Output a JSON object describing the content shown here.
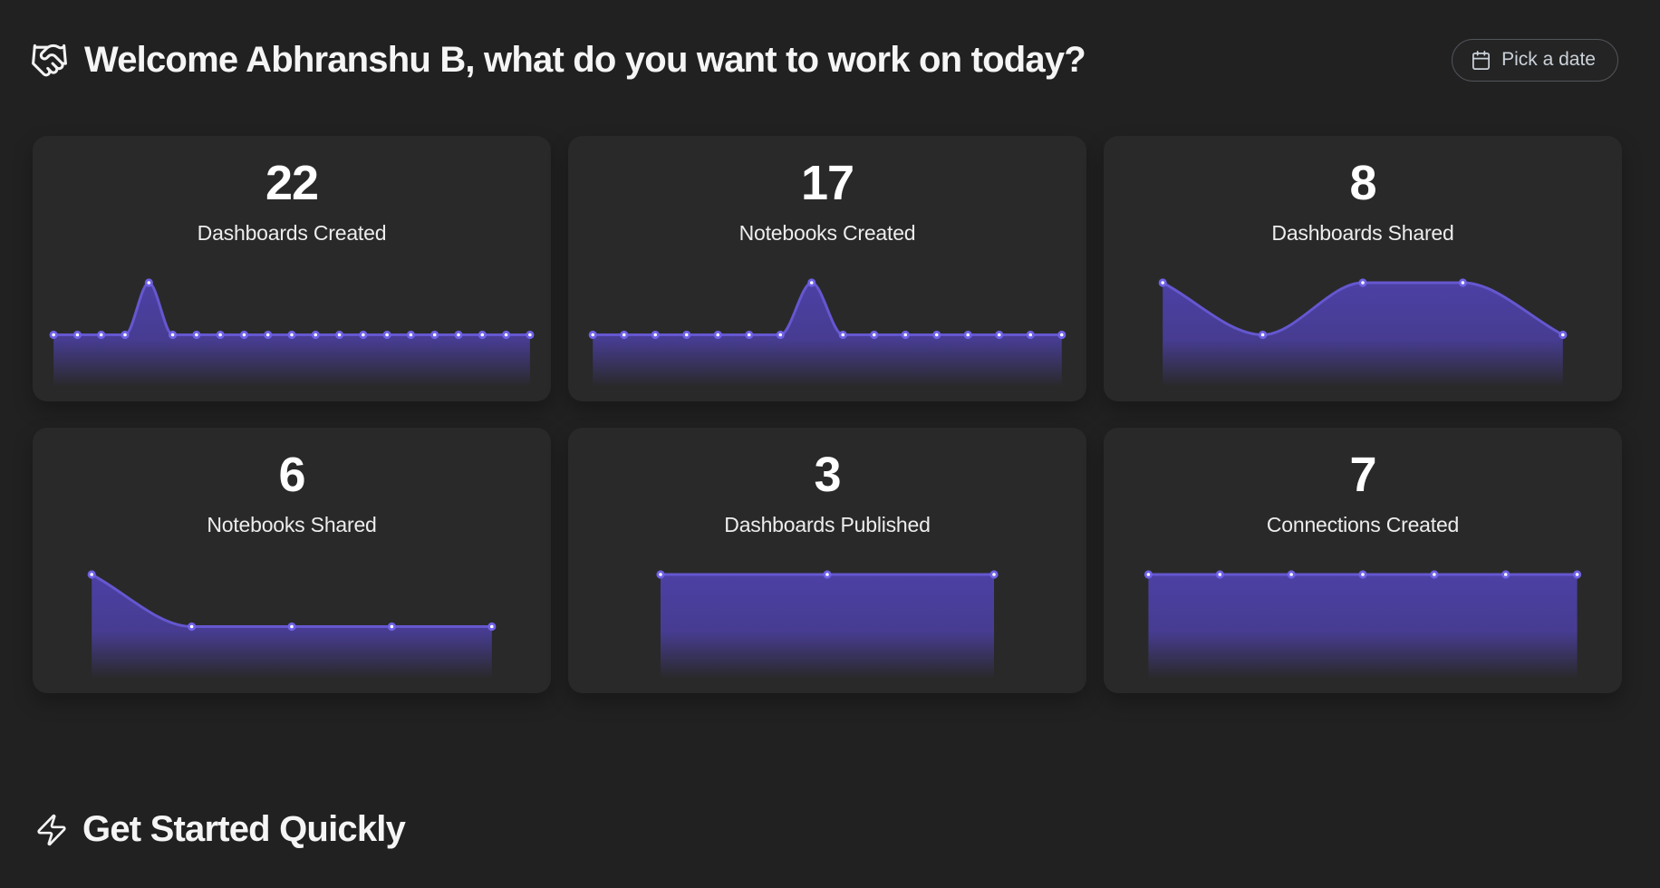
{
  "header": {
    "title": "Welcome Abhranshu B, what do you want to work on today?",
    "date_button_label": "Pick a date"
  },
  "cards": [
    {
      "value": "22",
      "label": "Dashboards Created"
    },
    {
      "value": "17",
      "label": "Notebooks Created"
    },
    {
      "value": "8",
      "label": "Dashboards Shared"
    },
    {
      "value": "6",
      "label": "Notebooks Shared"
    },
    {
      "value": "3",
      "label": "Dashboards Published"
    },
    {
      "value": "7",
      "label": "Connections Created"
    }
  ],
  "chart_data": [
    {
      "type": "area",
      "title": "Dashboards Created",
      "values": [
        1,
        1,
        1,
        1,
        2,
        1,
        1,
        1,
        1,
        1,
        1,
        1,
        1,
        1,
        1,
        1,
        1,
        1,
        1,
        1,
        1
      ]
    },
    {
      "type": "area",
      "title": "Notebooks Created",
      "values": [
        1,
        1,
        1,
        1,
        1,
        1,
        1,
        2,
        1,
        1,
        1,
        1,
        1,
        1,
        1,
        1
      ]
    },
    {
      "type": "area",
      "title": "Dashboards Shared",
      "values": [
        2,
        1,
        2,
        2,
        1
      ]
    },
    {
      "type": "area",
      "title": "Notebooks Shared",
      "values": [
        2,
        1,
        1,
        1,
        1
      ]
    },
    {
      "type": "area",
      "title": "Dashboards Published",
      "values": [
        1,
        1,
        1
      ]
    },
    {
      "type": "area",
      "title": "Connections Created",
      "values": [
        1,
        1,
        1,
        1,
        1,
        1,
        1
      ]
    }
  ],
  "footer": {
    "section_title": "Get Started Quickly"
  },
  "colors": {
    "page_bg": "#212121",
    "card_bg": "#292929",
    "line": "#6557d0",
    "dot": "#6f61e6",
    "dot_center": "#ffffff",
    "area": "#4e41ab"
  }
}
